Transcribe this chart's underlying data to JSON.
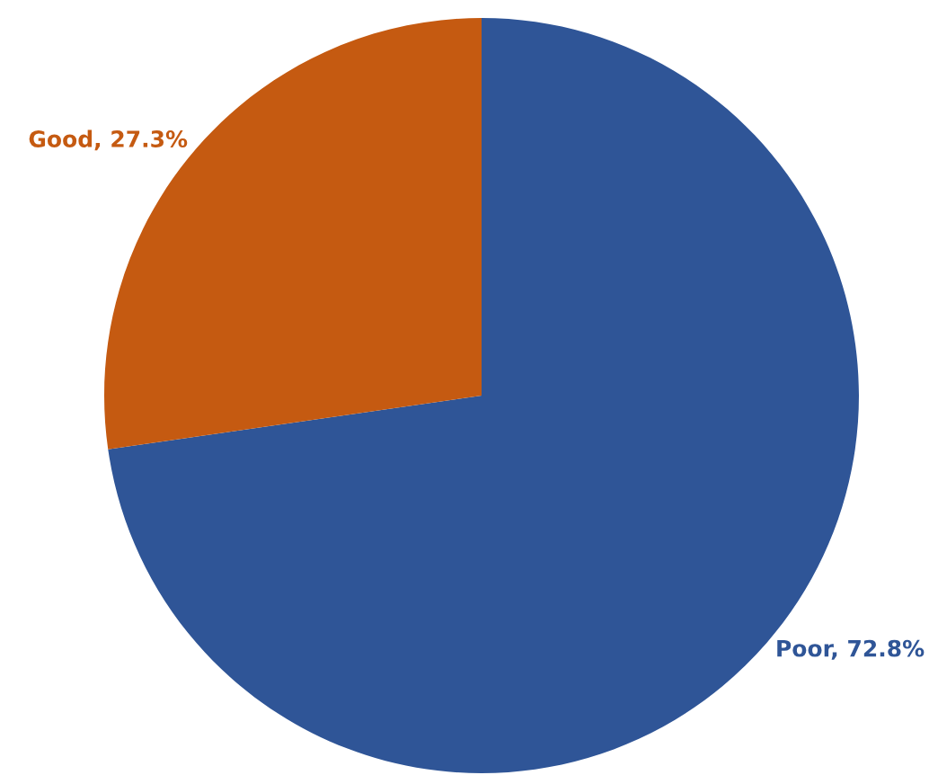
{
  "chart_data": {
    "type": "pie",
    "categories": [
      "Poor",
      "Good"
    ],
    "values": [
      72.8,
      27.3
    ],
    "colors": [
      "#2f5597",
      "#c55a11"
    ],
    "value_labels": [
      "72.8%",
      "27.3%"
    ],
    "legend": false
  }
}
